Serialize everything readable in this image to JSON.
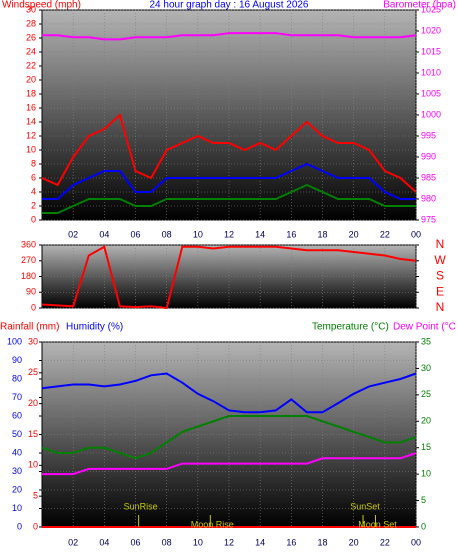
{
  "chart_data": [
    {
      "type": "line",
      "title": "24 hour graph day : 16 August 2026",
      "labels": [
        {
          "text": "Windspeed (mph)",
          "color": "#ff0000"
        },
        {
          "text": "Barometer (hpa)",
          "color": "#ff00ff"
        }
      ],
      "title_color": "#0000ff",
      "x": [
        0,
        1,
        2,
        3,
        4,
        5,
        6,
        7,
        8,
        9,
        10,
        11,
        12,
        13,
        14,
        15,
        16,
        17,
        18,
        19,
        20,
        21,
        22,
        23,
        24
      ],
      "xlim": [
        0,
        24
      ],
      "xticks": [
        {
          "value": 2,
          "label": "02"
        },
        {
          "value": 4,
          "label": "04"
        },
        {
          "value": 6,
          "label": "06"
        },
        {
          "value": 8,
          "label": "08"
        },
        10,
        12,
        14,
        16,
        18,
        20,
        22,
        {
          "value": 24,
          "label": "00"
        }
      ],
      "ylim": [
        0,
        30
      ],
      "yticks": [
        0,
        2,
        4,
        6,
        8,
        10,
        12,
        14,
        16,
        18,
        20,
        22,
        24,
        26,
        28,
        30
      ],
      "y2lim": [
        975,
        1025
      ],
      "y2ticks": [
        975,
        980,
        985,
        990,
        995,
        1000,
        1005,
        1010,
        1015,
        1020,
        1025
      ],
      "axis_colors": {
        "y": "#ff0000",
        "y2": "#ff00ff"
      },
      "grid": true,
      "series": [
        {
          "color": "#ff0000",
          "values": [
            6,
            5,
            9,
            12,
            13,
            15,
            7,
            6,
            10,
            11,
            12,
            11,
            11,
            10,
            11,
            10,
            12,
            14,
            12,
            11,
            11,
            10,
            7,
            6,
            4
          ]
        },
        {
          "color": "#0000ff",
          "values": [
            3,
            3,
            5,
            6,
            7,
            7,
            4,
            4,
            6,
            6,
            6,
            6,
            6,
            6,
            6,
            6,
            7,
            8,
            7,
            6,
            6,
            6,
            4,
            3,
            3
          ]
        },
        {
          "color": "#008000",
          "values": [
            1,
            1,
            2,
            3,
            3,
            3,
            2,
            2,
            3,
            3,
            3,
            3,
            3,
            3,
            3,
            3,
            4,
            5,
            4,
            3,
            3,
            3,
            2,
            2,
            2
          ]
        },
        {
          "color": "#ff00ff",
          "axis": "y2",
          "values": [
            1019,
            1019,
            1018.5,
            1018.5,
            1018,
            1018,
            1018.5,
            1018.5,
            1018.5,
            1019,
            1019,
            1019,
            1019.5,
            1019.5,
            1019.5,
            1019.5,
            1019,
            1019,
            1019,
            1019,
            1018.5,
            1018.5,
            1018.5,
            1018.5,
            1019
          ]
        }
      ]
    },
    {
      "type": "line",
      "x": [
        0,
        1,
        2,
        3,
        4,
        5,
        6,
        7,
        8,
        9,
        10,
        11,
        12,
        13,
        14,
        15,
        16,
        17,
        18,
        19,
        20,
        21,
        22,
        23,
        24
      ],
      "xlim": [
        0,
        24
      ],
      "xticks": [
        2,
        4,
        6,
        8,
        10,
        12,
        14,
        16,
        18,
        20,
        22,
        24
      ],
      "ylim": [
        0,
        360
      ],
      "yticks": [
        0,
        90,
        180,
        270,
        360
      ],
      "y2lim": [
        0,
        360
      ],
      "y2ticks": [
        {
          "value": 360,
          "label": "N"
        },
        {
          "value": 270,
          "label": "W"
        },
        {
          "value": 180,
          "label": "S"
        },
        {
          "value": 90,
          "label": "E"
        },
        {
          "value": 0,
          "label": "N"
        }
      ],
      "axis_colors": {
        "y": "#ff0000",
        "y2": "#ff0000"
      },
      "grid": true,
      "series": [
        {
          "color": "#ff0000",
          "values": [
            20,
            15,
            10,
            300,
            350,
            10,
            5,
            10,
            0,
            350,
            350,
            340,
            350,
            350,
            350,
            350,
            340,
            330,
            330,
            330,
            320,
            310,
            300,
            280,
            270
          ]
        }
      ]
    },
    {
      "type": "line",
      "labels": [
        {
          "text": "Rainfall (mm)",
          "color": "#ff0000"
        },
        {
          "text": "Humidity (%)",
          "color": "#0000ff"
        },
        {
          "text": "Temperature (°C)",
          "color": "#008000"
        },
        {
          "text": "Dew Point (°C",
          "color": "#ff00ff"
        }
      ],
      "x": [
        0,
        1,
        2,
        3,
        4,
        5,
        6,
        7,
        8,
        9,
        10,
        11,
        12,
        13,
        14,
        15,
        16,
        17,
        18,
        19,
        20,
        21,
        22,
        23,
        24
      ],
      "xlim": [
        0,
        24
      ],
      "xticks": [
        {
          "value": 2,
          "label": "02"
        },
        {
          "value": 4,
          "label": "04"
        },
        {
          "value": 6,
          "label": "06"
        },
        {
          "value": 8,
          "label": "08"
        },
        10,
        12,
        14,
        16,
        18,
        20,
        22,
        {
          "value": 24,
          "label": "00"
        }
      ],
      "ylim": [
        0,
        100
      ],
      "yticks": [
        0,
        10,
        20,
        30,
        40,
        50,
        60,
        70,
        80,
        90,
        100
      ],
      "y3lim": [
        0,
        30
      ],
      "y3ticks": [
        0,
        5,
        10,
        15,
        20,
        25,
        30
      ],
      "y2lim": [
        0,
        35
      ],
      "y2ticks": [
        0,
        5,
        10,
        15,
        20,
        25,
        30,
        35
      ],
      "axis_colors": {
        "y": "#0000ff",
        "y3": "#ff0000",
        "y2": "#008000"
      },
      "grid": true,
      "series": [
        {
          "color": "#0000ff",
          "values": [
            75,
            76,
            77,
            77,
            76,
            77,
            79,
            82,
            83,
            78,
            72,
            68,
            63,
            62,
            62,
            63,
            69,
            62,
            62,
            67,
            72,
            76,
            78,
            80,
            83
          ]
        },
        {
          "color": "#008000",
          "axis": "y2",
          "values": [
            15,
            14,
            14,
            15,
            15,
            14,
            13,
            14,
            16,
            18,
            19,
            20,
            21,
            21,
            21,
            21,
            21,
            21,
            20,
            19,
            18,
            17,
            16,
            16,
            17
          ]
        },
        {
          "color": "#ff00ff",
          "axis": "y2",
          "values": [
            10,
            10,
            10,
            11,
            11,
            11,
            11,
            11,
            11,
            12,
            12,
            12,
            12,
            12,
            12,
            12,
            12,
            12,
            13,
            13,
            13,
            13,
            13,
            13,
            14
          ]
        },
        {
          "color": "#ff0000",
          "axis": "y3",
          "values": [
            0,
            0,
            0,
            0,
            0,
            0,
            0,
            0,
            0,
            0,
            0,
            0,
            0,
            0,
            0,
            0,
            0,
            0,
            0,
            0,
            0,
            0,
            0,
            0,
            0
          ]
        }
      ],
      "annotation_color": "#c8c800",
      "annotations": [
        {
          "text": "SunRise",
          "x": 6.2
        },
        {
          "text": "Moon Rise",
          "x": 10.8
        },
        {
          "text": "SunSet",
          "x": 20.6
        },
        {
          "text": "Moon Set",
          "x": 21.4
        }
      ]
    }
  ]
}
